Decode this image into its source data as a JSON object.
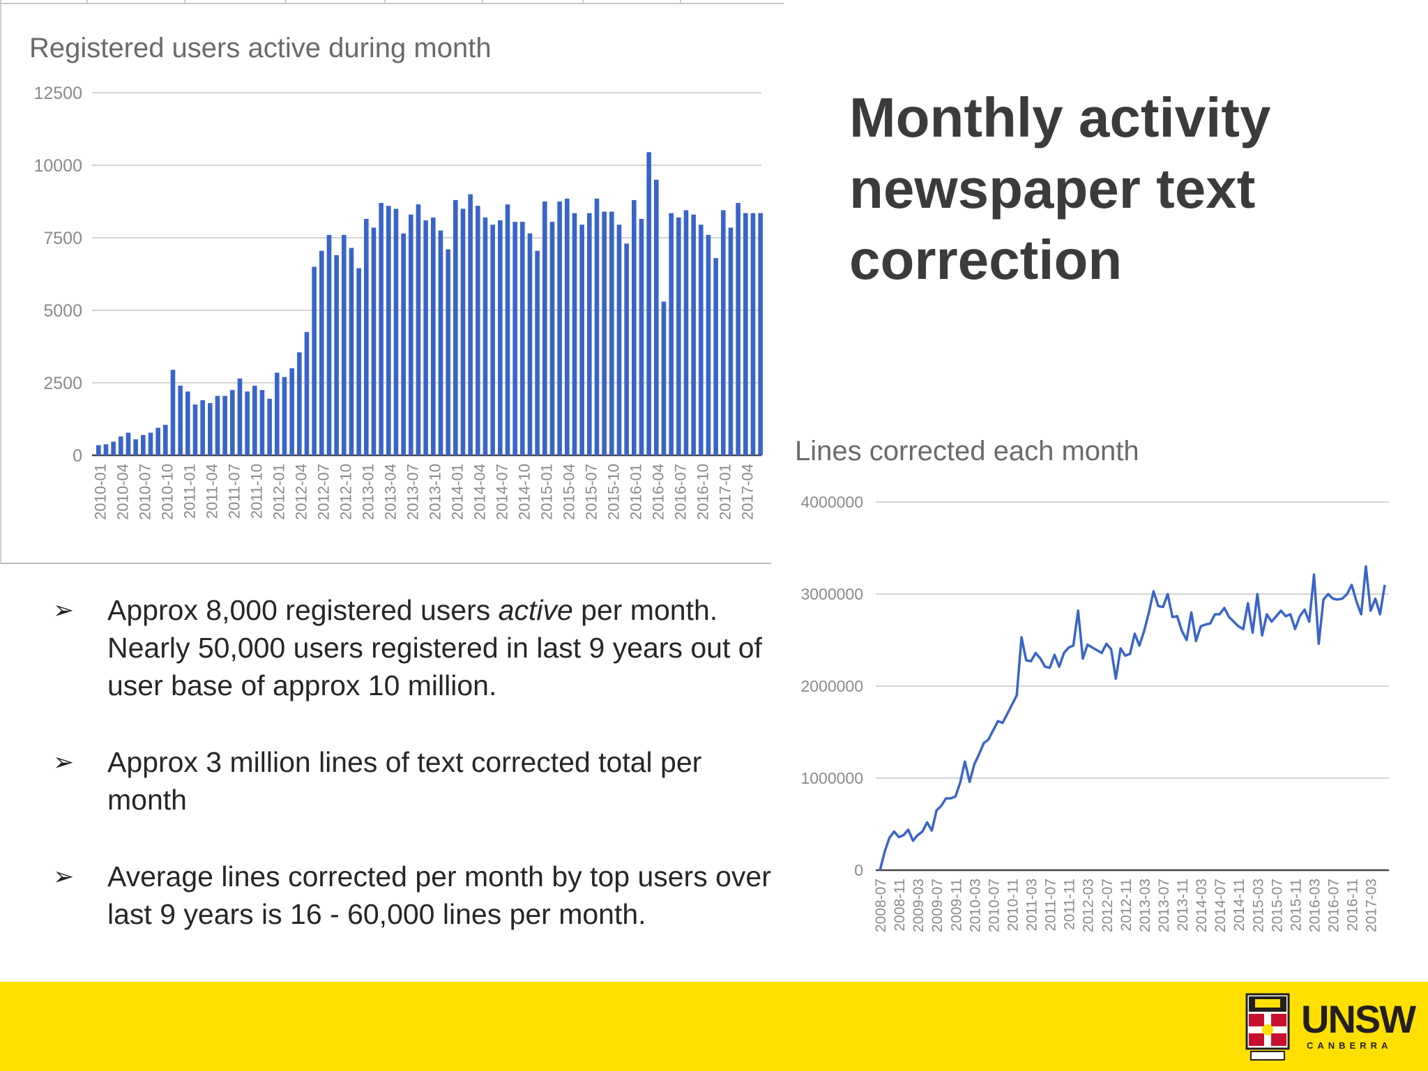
{
  "slide": {
    "title": "Monthly activity newspaper text correction",
    "bullets": [
      {
        "before": "Approx 8,000 registered users ",
        "em": "active",
        "after": " per month. Nearly 50,000 users registered in last 9 years out of user base of approx 10 million."
      },
      {
        "before": "Approx 3 million lines of text corrected total per month",
        "em": "",
        "after": ""
      },
      {
        "before": "Average lines corrected per month by top users over last 9 years is 16 - 60,000 lines per month.",
        "em": "",
        "after": ""
      }
    ],
    "bullet_icon": "arrow-bullet-icon"
  },
  "footer": {
    "logo_text": "UNSW",
    "logo_subtext": "CANBERRA",
    "crest_icon": "unsw-crest-icon"
  },
  "chart_data": [
    {
      "type": "bar",
      "title": "Registered users active during month",
      "xlabel": "",
      "ylabel": "",
      "ylim": [
        0,
        12500
      ],
      "yticks": [
        0,
        2500,
        5000,
        7500,
        10000,
        12500
      ],
      "grid": true,
      "legend": "none",
      "color": "#3a64c8",
      "tick_labels": [
        "2010-01",
        "2010-04",
        "2010-07",
        "2010-10",
        "2011-01",
        "2011-04",
        "2011-07",
        "2011-10",
        "2012-01",
        "2012-04",
        "2012-07",
        "2012-10",
        "2013-01",
        "2013-04",
        "2013-07",
        "2013-10",
        "2014-01",
        "2014-04",
        "2014-07",
        "2014-10",
        "2015-01",
        "2015-04",
        "2015-07",
        "2015-10",
        "2016-01",
        "2016-04",
        "2016-07",
        "2016-10",
        "2017-01",
        "2017-04"
      ],
      "categories": [
        "2010-01",
        "2010-02",
        "2010-03",
        "2010-04",
        "2010-05",
        "2010-06",
        "2010-07",
        "2010-08",
        "2010-09",
        "2010-10",
        "2010-11",
        "2010-12",
        "2011-01",
        "2011-02",
        "2011-03",
        "2011-04",
        "2011-05",
        "2011-06",
        "2011-07",
        "2011-08",
        "2011-09",
        "2011-10",
        "2011-11",
        "2011-12",
        "2012-01",
        "2012-02",
        "2012-03",
        "2012-04",
        "2012-05",
        "2012-06",
        "2012-07",
        "2012-08",
        "2012-09",
        "2012-10",
        "2012-11",
        "2012-12",
        "2013-01",
        "2013-02",
        "2013-03",
        "2013-04",
        "2013-05",
        "2013-06",
        "2013-07",
        "2013-08",
        "2013-09",
        "2013-10",
        "2013-11",
        "2013-12",
        "2014-01",
        "2014-02",
        "2014-03",
        "2014-04",
        "2014-05",
        "2014-06",
        "2014-07",
        "2014-08",
        "2014-09",
        "2014-10",
        "2014-11",
        "2014-12",
        "2015-01",
        "2015-02",
        "2015-03",
        "2015-04",
        "2015-05",
        "2015-06",
        "2015-07",
        "2015-08",
        "2015-09",
        "2015-10",
        "2015-11",
        "2015-12",
        "2016-01",
        "2016-02",
        "2016-03",
        "2016-04",
        "2016-05",
        "2016-06",
        "2016-07",
        "2016-08",
        "2016-09",
        "2016-10",
        "2016-11",
        "2016-12",
        "2017-01",
        "2017-02",
        "2017-03",
        "2017-04",
        "2017-05",
        "2017-06"
      ],
      "values": [
        350,
        380,
        470,
        650,
        780,
        550,
        700,
        780,
        950,
        1050,
        2950,
        2400,
        2200,
        1750,
        1900,
        1800,
        2050,
        2050,
        2250,
        2650,
        2200,
        2400,
        2250,
        1950,
        2850,
        2700,
        3000,
        3550,
        4250,
        6500,
        7050,
        7600,
        6900,
        7600,
        7150,
        6450,
        8150,
        7850,
        8700,
        8600,
        8500,
        7650,
        8300,
        8650,
        8100,
        8200,
        7750,
        7100,
        8800,
        8500,
        9000,
        8600,
        8200,
        7950,
        8100,
        8650,
        8050,
        8050,
        7650,
        7050,
        8750,
        8050,
        8750,
        8850,
        8350,
        7950,
        8350,
        8850,
        8400,
        8400,
        7950,
        7300,
        8800,
        8150,
        10450,
        9500,
        5300,
        8350,
        8200,
        8450,
        8300,
        7950,
        7600,
        6800,
        8450,
        7850,
        8700,
        8350,
        8350,
        8350
      ]
    },
    {
      "type": "line",
      "title": "Lines corrected each month",
      "xlabel": "",
      "ylabel": "",
      "ylim": [
        0,
        4000000
      ],
      "yticks": [
        0,
        1000000,
        2000000,
        3000000,
        4000000
      ],
      "grid": true,
      "legend": "none",
      "color": "#3a64c8",
      "tick_labels": [
        "2008-07",
        "2008-11",
        "2009-03",
        "2009-07",
        "2009-11",
        "2010-03",
        "2010-07",
        "2010-11",
        "2011-03",
        "2011-07",
        "2011-11",
        "2012-03",
        "2012-07",
        "2012-11",
        "2013-03",
        "2013-07",
        "2013-11",
        "2014-03",
        "2014-07",
        "2014-11",
        "2015-03",
        "2015-07",
        "2015-11",
        "2016-03",
        "2016-07",
        "2016-11",
        "2017-03"
      ],
      "x": [
        "2008-07",
        "2008-08",
        "2008-09",
        "2008-10",
        "2008-11",
        "2008-12",
        "2009-01",
        "2009-02",
        "2009-03",
        "2009-04",
        "2009-05",
        "2009-06",
        "2009-07",
        "2009-08",
        "2009-09",
        "2009-10",
        "2009-11",
        "2009-12",
        "2010-01",
        "2010-02",
        "2010-03",
        "2010-04",
        "2010-05",
        "2010-06",
        "2010-07",
        "2010-08",
        "2010-09",
        "2010-10",
        "2010-11",
        "2010-12",
        "2011-01",
        "2011-02",
        "2011-03",
        "2011-04",
        "2011-05",
        "2011-06",
        "2011-07",
        "2011-08",
        "2011-09",
        "2011-10",
        "2011-11",
        "2011-12",
        "2012-01",
        "2012-02",
        "2012-03",
        "2012-04",
        "2012-05",
        "2012-06",
        "2012-07",
        "2012-08",
        "2012-09",
        "2012-10",
        "2012-11",
        "2012-12",
        "2013-01",
        "2013-02",
        "2013-03",
        "2013-04",
        "2013-05",
        "2013-06",
        "2013-07",
        "2013-08",
        "2013-09",
        "2013-10",
        "2013-11",
        "2013-12",
        "2014-01",
        "2014-02",
        "2014-03",
        "2014-04",
        "2014-05",
        "2014-06",
        "2014-07",
        "2014-08",
        "2014-09",
        "2014-10",
        "2014-11",
        "2014-12",
        "2015-01",
        "2015-02",
        "2015-03",
        "2015-04",
        "2015-05",
        "2015-06",
        "2015-07",
        "2015-08",
        "2015-09",
        "2015-10",
        "2015-11",
        "2015-12",
        "2016-01",
        "2016-02",
        "2016-03",
        "2016-04",
        "2016-05",
        "2016-06",
        "2016-07",
        "2016-08",
        "2016-09",
        "2016-10",
        "2016-11",
        "2016-12",
        "2017-01",
        "2017-02",
        "2017-03",
        "2017-04",
        "2017-05",
        "2017-06"
      ],
      "y": [
        0,
        200000,
        350000,
        420000,
        360000,
        380000,
        440000,
        320000,
        380000,
        420000,
        520000,
        430000,
        650000,
        700000,
        780000,
        780000,
        800000,
        950000,
        1180000,
        960000,
        1150000,
        1260000,
        1380000,
        1420000,
        1520000,
        1620000,
        1600000,
        1700000,
        1800000,
        1900000,
        2530000,
        2280000,
        2270000,
        2360000,
        2300000,
        2210000,
        2200000,
        2340000,
        2210000,
        2360000,
        2420000,
        2440000,
        2820000,
        2300000,
        2450000,
        2420000,
        2390000,
        2360000,
        2460000,
        2400000,
        2080000,
        2410000,
        2330000,
        2350000,
        2570000,
        2440000,
        2600000,
        2800000,
        3030000,
        2870000,
        2860000,
        3000000,
        2750000,
        2760000,
        2600000,
        2500000,
        2800000,
        2490000,
        2650000,
        2670000,
        2680000,
        2780000,
        2780000,
        2850000,
        2750000,
        2700000,
        2650000,
        2620000,
        2900000,
        2580000,
        3000000,
        2550000,
        2780000,
        2700000,
        2760000,
        2820000,
        2760000,
        2780000,
        2620000,
        2760000,
        2830000,
        2700000,
        3210000,
        2460000,
        2940000,
        3000000,
        2950000,
        2940000,
        2950000,
        3000000,
        3100000,
        2920000,
        2780000,
        3300000,
        2820000,
        2950000,
        2780000,
        3100000
      ]
    }
  ]
}
